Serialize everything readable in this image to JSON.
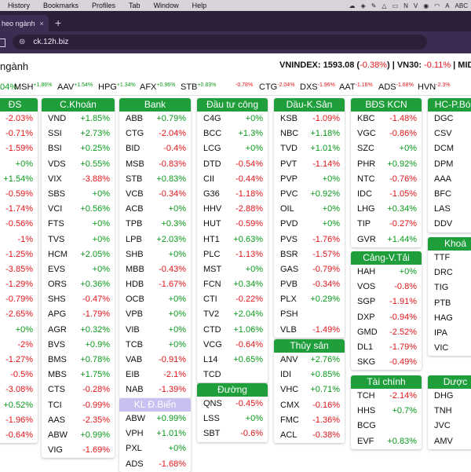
{
  "menubar": {
    "items": [
      "History",
      "Bookmarks",
      "Profiles",
      "Tab",
      "Window",
      "Help"
    ],
    "input_source": "ABC"
  },
  "browser": {
    "tab_title": "heo ngành",
    "tab_close": "×",
    "new_tab": "+",
    "url": "ck.12h.biz"
  },
  "page": {
    "title": "ngành",
    "index_text": "VNINDEX: 1593.08 (",
    "index_change": "-0.38%",
    "index_text2": ") | VN30: ",
    "vn30_change": "-0.11%",
    "index_text3": " | MIDC"
  },
  "ticker": [
    {
      "sym": "04%",
      "chg": "",
      "c": "g"
    },
    {
      "sym": "MSH",
      "chg": "+1.86%",
      "c": "g"
    },
    {
      "sym": "AAV",
      "chg": "+1.54%",
      "c": "g"
    },
    {
      "sym": "HPG",
      "chg": "+1.34%",
      "c": "g"
    },
    {
      "sym": "AFX",
      "chg": "+0.96%",
      "c": "g"
    },
    {
      "sym": "STB",
      "chg": "+0.83%",
      "c": "g"
    },
    {
      "sym": "",
      "chg": "-0.78%",
      "c": "r"
    },
    {
      "sym": "CTG",
      "chg": "-2.04%",
      "c": "r"
    },
    {
      "sym": "DXS",
      "chg": "-1.96%",
      "c": "r"
    },
    {
      "sym": "AAT",
      "chg": "-1.16%",
      "c": "r"
    },
    {
      "sym": "ADS",
      "chg": "-1.68%",
      "c": "r"
    },
    {
      "sym": "HVN",
      "chg": "-2.3%",
      "c": "r"
    },
    {
      "sym": "",
      "chg": "",
      "c": "r"
    }
  ],
  "panels": [
    {
      "title": "ĐS",
      "rows": [
        [
          "",
          "-2.03%"
        ],
        [
          "",
          "-0.71%"
        ],
        [
          "",
          "-1.59%"
        ],
        [
          "",
          "+0%"
        ],
        [
          "",
          "+1.54%"
        ],
        [
          "",
          "-0.59%"
        ],
        [
          "",
          "-1.74%"
        ],
        [
          "",
          "-0.56%"
        ],
        [
          "",
          "-1%"
        ],
        [
          "",
          "-1.25%"
        ],
        [
          "",
          "-3.85%"
        ],
        [
          "",
          "-1.29%"
        ],
        [
          "",
          "-0.79%"
        ],
        [
          "",
          "-2.65%"
        ],
        [
          "",
          "+0%"
        ],
        [
          "",
          "-2%"
        ],
        [
          "",
          "-1.27%"
        ],
        [
          "",
          "-0.5%"
        ],
        [
          "",
          "-3.08%"
        ],
        [
          "",
          "+0.52%"
        ],
        [
          "",
          "-1.96%"
        ],
        [
          "",
          "-0.64%"
        ]
      ]
    },
    {
      "title": "C.Khoán",
      "rows": [
        [
          "VND",
          "+1.85%"
        ],
        [
          "SSI",
          "+2.73%"
        ],
        [
          "BSI",
          "+0.25%"
        ],
        [
          "VDS",
          "+0.55%"
        ],
        [
          "VIX",
          "-3.88%"
        ],
        [
          "SBS",
          "+0%"
        ],
        [
          "VCI",
          "+0.56%"
        ],
        [
          "FTS",
          "+0%"
        ],
        [
          "TVS",
          "+0%"
        ],
        [
          "HCM",
          "+2.05%"
        ],
        [
          "EVS",
          "+0%"
        ],
        [
          "ORS",
          "+0.36%"
        ],
        [
          "SHS",
          "-0.47%"
        ],
        [
          "APG",
          "-1.79%"
        ],
        [
          "AGR",
          "+0.32%"
        ],
        [
          "BVS",
          "+0.9%"
        ],
        [
          "BMS",
          "+0.78%"
        ],
        [
          "MBS",
          "+1.75%"
        ],
        [
          "CTS",
          "-0.28%"
        ],
        [
          "TCI",
          "-0.99%"
        ],
        [
          "AAS",
          "-2.35%"
        ],
        [
          "ABW",
          "+0.99%"
        ],
        [
          "VIG",
          "-1.69%"
        ]
      ]
    },
    {
      "title": "Bank",
      "rows": [
        [
          "ABB",
          "+0.79%"
        ],
        [
          "CTG",
          "-2.04%"
        ],
        [
          "BID",
          "-0.4%"
        ],
        [
          "MSB",
          "-0.83%"
        ],
        [
          "STB",
          "+0.83%"
        ],
        [
          "VCB",
          "-0.34%"
        ],
        [
          "ACB",
          "+0%"
        ],
        [
          "TPB",
          "+0.3%"
        ],
        [
          "LPB",
          "+2.03%"
        ],
        [
          "SHB",
          "+0%"
        ],
        [
          "MBB",
          "-0.43%"
        ],
        [
          "HDB",
          "-1.67%"
        ],
        [
          "OCB",
          "+0%"
        ],
        [
          "VPB",
          "+0%"
        ],
        [
          "VIB",
          "+0%"
        ],
        [
          "TCB",
          "+0%"
        ],
        [
          "VAB",
          "-0.91%"
        ],
        [
          "EIB",
          "-2.1%"
        ],
        [
          "NAB",
          "-1.39%"
        ]
      ]
    },
    {
      "title": "Đầu tư công",
      "rows": [
        [
          "C4G",
          "+0%"
        ],
        [
          "BCC",
          "+1.3%"
        ],
        [
          "LCG",
          "+0%"
        ],
        [
          "DTD",
          "-0.54%"
        ],
        [
          "CII",
          "-0.44%"
        ],
        [
          "G36",
          "-1.18%"
        ],
        [
          "HHV",
          "-2.88%"
        ],
        [
          "HUT",
          "-0.59%"
        ],
        [
          "HT1",
          "+0.63%"
        ],
        [
          "PLC",
          "-1.13%"
        ],
        [
          "MST",
          "+0%"
        ],
        [
          "FCN",
          "+0.34%"
        ],
        [
          "CTI",
          "-0.22%"
        ],
        [
          "TV2",
          "+2.04%"
        ],
        [
          "CTD",
          "+1.06%"
        ],
        [
          "VCG",
          "-0.64%"
        ],
        [
          "L14",
          "+0.65%"
        ],
        [
          "TCD",
          ""
        ]
      ]
    },
    {
      "title": "Dầu-K.Sản",
      "rows": [
        [
          "KSB",
          "-1.09%"
        ],
        [
          "NBC",
          "+1.18%"
        ],
        [
          "TVD",
          "+1.01%"
        ],
        [
          "PVT",
          "-1.14%"
        ],
        [
          "PVP",
          "+0%"
        ],
        [
          "PVC",
          "+0.92%"
        ],
        [
          "OIL",
          "+0%"
        ],
        [
          "PVD",
          "+0%"
        ],
        [
          "PVS",
          "-1.76%"
        ],
        [
          "BSR",
          "-1.57%"
        ],
        [
          "GAS",
          "-0.79%"
        ],
        [
          "PVB",
          "-0.34%"
        ],
        [
          "PLX",
          "+0.29%"
        ],
        [
          "PSH",
          ""
        ],
        [
          "VLB",
          "-1.49%"
        ]
      ]
    },
    {
      "title": "BĐS KCN",
      "rows": [
        [
          "KBC",
          "-1.48%"
        ],
        [
          "VGC",
          "-0.86%"
        ],
        [
          "SZC",
          "+0%"
        ],
        [
          "PHR",
          "+0.92%"
        ],
        [
          "NTC",
          "-0.76%"
        ],
        [
          "IDC",
          "-1.05%"
        ],
        [
          "LHG",
          "+0.34%"
        ],
        [
          "TIP",
          "-0.27%"
        ],
        [
          "GVR",
          "+1.44%"
        ]
      ]
    },
    {
      "title": "HC-P.Bón",
      "rows": [
        [
          "DGC",
          ""
        ],
        [
          "CSV",
          ""
        ],
        [
          "DCM",
          ""
        ],
        [
          "DPM",
          ""
        ],
        [
          "AAA",
          ""
        ],
        [
          "BFC",
          ""
        ],
        [
          "LAS",
          ""
        ],
        [
          "DDV",
          ""
        ]
      ]
    },
    {
      "title": "KL Đ.Biển",
      "rows": [
        [
          "ABW",
          "+0.99%"
        ],
        [
          "VPH",
          "+1.01%"
        ],
        [
          "PXL",
          "+0%"
        ],
        [
          "ADS",
          "-1.68%"
        ]
      ]
    },
    {
      "title": "Đường",
      "rows": [
        [
          "QNS",
          "-0.45%"
        ],
        [
          "LSS",
          "+0%"
        ],
        [
          "SBT",
          "-0.6%"
        ]
      ]
    },
    {
      "title": "Thủy sản",
      "rows": [
        [
          "ANV",
          "+2.76%"
        ],
        [
          "IDI",
          "+0.85%"
        ],
        [
          "VHC",
          "+0.71%"
        ],
        [
          "CMX",
          "-0.16%"
        ],
        [
          "FMC",
          "-1.36%"
        ],
        [
          "ACL",
          "-0.38%"
        ]
      ]
    },
    {
      "title": "Cảng-V.Tải",
      "rows": [
        [
          "HAH",
          "+0%"
        ],
        [
          "VOS",
          "-0.8%"
        ],
        [
          "SGP",
          "-1.91%"
        ],
        [
          "DXP",
          "-0.94%"
        ],
        [
          "GMD",
          "-2.52%"
        ],
        [
          "DL1",
          "-1.79%"
        ],
        [
          "SKG",
          "-0.49%"
        ]
      ]
    },
    {
      "title": "Tài chính",
      "rows": [
        [
          "TCH",
          "-2.14%"
        ],
        [
          "HHS",
          "+0.7%"
        ],
        [
          "BCG",
          ""
        ],
        [
          "EVF",
          "+0.83%"
        ]
      ]
    },
    {
      "title": "Khoá",
      "rows": [
        [
          "TTF",
          ""
        ],
        [
          "DRC",
          ""
        ],
        [
          "TIG",
          ""
        ],
        [
          "PTB",
          ""
        ],
        [
          "HAG",
          ""
        ],
        [
          "IPA",
          ""
        ],
        [
          "VIC",
          ""
        ]
      ]
    },
    {
      "title": "Dược",
      "rows": [
        [
          "DHG",
          ""
        ],
        [
          "TNH",
          ""
        ],
        [
          "JVC",
          ""
        ],
        [
          "AMV",
          ""
        ]
      ]
    }
  ],
  "colors": {
    "green": "#0a9b1c",
    "red": "#e0161b",
    "header_green": "#1f9e3c",
    "header_purple": "#c8c0f0"
  }
}
